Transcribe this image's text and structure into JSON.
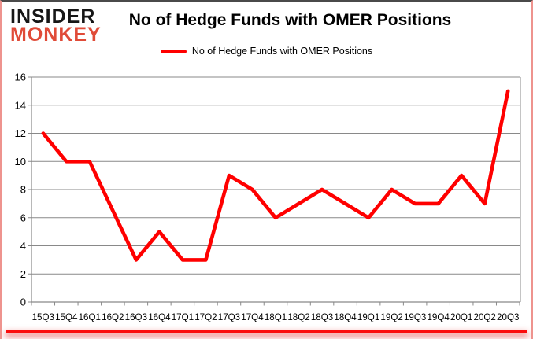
{
  "brand": {
    "name_top": "INSIDER",
    "name_bottom": "MONKEY",
    "red": "#e04b38"
  },
  "header": {
    "title": "No of Hedge Funds with OMER Positions"
  },
  "legend": {
    "label": "No of Hedge Funds with OMER Positions",
    "line_color": "#ff0000"
  },
  "chart_data": {
    "type": "line",
    "title": "No of Hedge Funds with OMER Positions",
    "categories": [
      "15Q3",
      "15Q4",
      "16Q1",
      "16Q2",
      "16Q3",
      "16Q4",
      "17Q1",
      "17Q2",
      "17Q3",
      "17Q4",
      "18Q1",
      "18Q2",
      "18Q3",
      "18Q4",
      "19Q1",
      "19Q2",
      "19Q3",
      "19Q4",
      "20Q1",
      "20Q2",
      "20Q3"
    ],
    "series": [
      {
        "name": "No of Hedge Funds with OMER Positions",
        "color": "#ff0000",
        "values": [
          12,
          10,
          10,
          null,
          3,
          5,
          3,
          3,
          9,
          8,
          6,
          7,
          8,
          7,
          6,
          8,
          7,
          7,
          9,
          7,
          15
        ]
      }
    ],
    "xlabel": "",
    "ylabel": "",
    "ylim": [
      0,
      16
    ],
    "yticks": [
      0,
      2,
      4,
      6,
      8,
      10,
      12,
      14,
      16
    ],
    "grid": true,
    "legend_position": "top"
  },
  "colors": {
    "grid": "#898989",
    "axis": "#898989",
    "text": "#000000",
    "bottom_bar": "#fb0c0c"
  }
}
